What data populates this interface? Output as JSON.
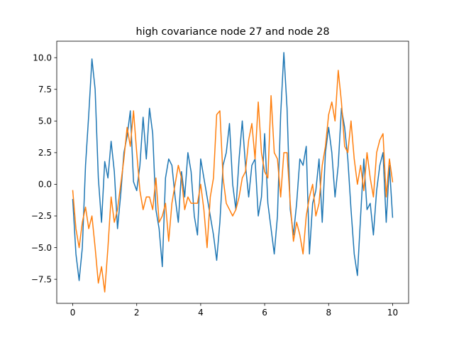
{
  "chart_data": {
    "type": "line",
    "title": "high covariance node 27 and node 28",
    "xlabel": "",
    "ylabel": "",
    "xlim": [
      -0.5,
      10.5
    ],
    "ylim": [
      -9.4,
      11.3
    ],
    "x_ticks": [
      0,
      2,
      4,
      6,
      8,
      10
    ],
    "x_tick_labels": [
      "0",
      "2",
      "4",
      "6",
      "8",
      "10"
    ],
    "y_ticks": [
      -7.5,
      -5.0,
      -2.5,
      0.0,
      2.5,
      5.0,
      7.5,
      10.0
    ],
    "y_tick_labels": [
      "−7.5",
      "−5.0",
      "−2.5",
      "0.0",
      "2.5",
      "5.0",
      "7.5",
      "10.0"
    ],
    "grid": false,
    "legend": "none",
    "series": [
      {
        "color": "#1f77b4",
        "x": [
          0.0,
          0.1,
          0.2,
          0.3,
          0.4,
          0.5,
          0.6,
          0.7,
          0.8,
          0.9,
          1.0,
          1.1,
          1.2,
          1.3,
          1.4,
          1.5,
          1.6,
          1.7,
          1.8,
          1.9,
          2.0,
          2.1,
          2.2,
          2.3,
          2.4,
          2.5,
          2.6,
          2.7,
          2.8,
          2.9,
          3.0,
          3.1,
          3.2,
          3.3,
          3.4,
          3.5,
          3.6,
          3.7,
          3.8,
          3.9,
          4.0,
          4.1,
          4.2,
          4.3,
          4.4,
          4.5,
          4.6,
          4.7,
          4.8,
          4.9,
          5.0,
          5.1,
          5.2,
          5.3,
          5.4,
          5.5,
          5.6,
          5.7,
          5.8,
          5.9,
          6.0,
          6.1,
          6.2,
          6.3,
          6.4,
          6.5,
          6.6,
          6.7,
          6.8,
          6.9,
          7.0,
          7.1,
          7.2,
          7.3,
          7.4,
          7.5,
          7.6,
          7.7,
          7.8,
          7.9,
          8.0,
          8.1,
          8.2,
          8.3,
          8.4,
          8.5,
          8.6,
          8.7,
          8.8,
          8.9,
          9.0,
          9.1,
          9.2,
          9.3,
          9.4,
          9.5,
          9.6,
          9.7,
          9.8,
          9.9,
          10.0
        ],
        "values": [
          -1.2,
          -5.5,
          -7.6,
          -5.0,
          1.5,
          5.5,
          9.9,
          7.5,
          0.5,
          -3.0,
          1.8,
          0.5,
          3.4,
          1.0,
          -3.5,
          -0.8,
          2.5,
          3.8,
          5.8,
          0.2,
          -0.5,
          1.5,
          5.3,
          2.0,
          6.0,
          4.0,
          -2.0,
          -3.5,
          -6.5,
          0.5,
          2.0,
          1.5,
          -1.0,
          -3.0,
          1.0,
          -1.0,
          2.5,
          1.0,
          -2.5,
          -4.0,
          2.0,
          0.5,
          -1.0,
          -2.5,
          -4.0,
          -6.0,
          -3.0,
          1.5,
          2.5,
          4.8,
          0.0,
          -2.0,
          2.0,
          5.0,
          1.5,
          -1.0,
          1.5,
          2.0,
          -2.5,
          -1.0,
          4.0,
          -1.5,
          -3.5,
          -5.5,
          -2.5,
          5.5,
          10.4,
          6.0,
          -2.0,
          -4.0,
          -1.5,
          2.0,
          1.5,
          3.0,
          -5.5,
          -1.5,
          -0.5,
          2.0,
          -3.0,
          2.5,
          4.5,
          2.5,
          -1.0,
          1.5,
          6.0,
          4.5,
          2.0,
          -2.0,
          -5.5,
          -7.2,
          -2.5,
          2.0,
          -2.0,
          -1.5,
          -4.0,
          -0.5,
          1.5,
          2.5,
          -3.0,
          1.5,
          -2.6
        ]
      },
      {
        "color": "#ff7f0e",
        "x": [
          0.0,
          0.1,
          0.2,
          0.3,
          0.4,
          0.5,
          0.6,
          0.7,
          0.8,
          0.9,
          1.0,
          1.1,
          1.2,
          1.3,
          1.4,
          1.5,
          1.6,
          1.7,
          1.8,
          1.9,
          2.0,
          2.1,
          2.2,
          2.3,
          2.4,
          2.5,
          2.6,
          2.7,
          2.8,
          2.9,
          3.0,
          3.1,
          3.2,
          3.3,
          3.4,
          3.5,
          3.6,
          3.7,
          3.8,
          3.9,
          4.0,
          4.1,
          4.2,
          4.3,
          4.4,
          4.5,
          4.6,
          4.7,
          4.8,
          4.9,
          5.0,
          5.1,
          5.2,
          5.3,
          5.4,
          5.5,
          5.6,
          5.7,
          5.8,
          5.9,
          6.0,
          6.1,
          6.2,
          6.3,
          6.4,
          6.5,
          6.6,
          6.7,
          6.8,
          6.9,
          7.0,
          7.1,
          7.2,
          7.3,
          7.4,
          7.5,
          7.6,
          7.7,
          7.8,
          7.9,
          8.0,
          8.1,
          8.2,
          8.3,
          8.4,
          8.5,
          8.6,
          8.7,
          8.8,
          8.9,
          9.0,
          9.1,
          9.2,
          9.3,
          9.4,
          9.5,
          9.6,
          9.7,
          9.8,
          9.9,
          10.0
        ],
        "values": [
          -0.5,
          -3.5,
          -5.0,
          -3.0,
          -1.8,
          -3.5,
          -2.5,
          -5.0,
          -7.8,
          -6.5,
          -8.5,
          -5.0,
          -1.0,
          -3.0,
          -2.0,
          0.0,
          2.0,
          4.5,
          3.0,
          5.8,
          2.5,
          -0.5,
          -2.0,
          -1.0,
          -1.0,
          -2.0,
          0.5,
          -3.0,
          -2.5,
          -1.5,
          -4.5,
          -1.5,
          0.0,
          1.5,
          0.5,
          -2.0,
          -1.0,
          -1.5,
          -1.5,
          -1.5,
          0.0,
          -2.0,
          -5.0,
          -1.0,
          0.5,
          5.5,
          5.8,
          0.5,
          -1.5,
          -2.0,
          -2.5,
          -2.0,
          -1.0,
          0.5,
          1.0,
          3.5,
          4.8,
          2.0,
          6.5,
          2.5,
          1.0,
          0.5,
          7.0,
          2.5,
          2.0,
          -1.0,
          2.5,
          2.5,
          -1.5,
          -4.5,
          -3.0,
          -4.0,
          -5.5,
          -2.5,
          -1.0,
          0.0,
          -2.5,
          -1.5,
          1.5,
          3.0,
          5.5,
          6.5,
          5.0,
          9.0,
          6.5,
          3.0,
          2.5,
          5.0,
          2.0,
          0.0,
          1.5,
          -0.5,
          2.5,
          0.5,
          -1.0,
          2.5,
          3.5,
          4.0,
          -1.0,
          2.0,
          0.2
        ]
      }
    ]
  }
}
